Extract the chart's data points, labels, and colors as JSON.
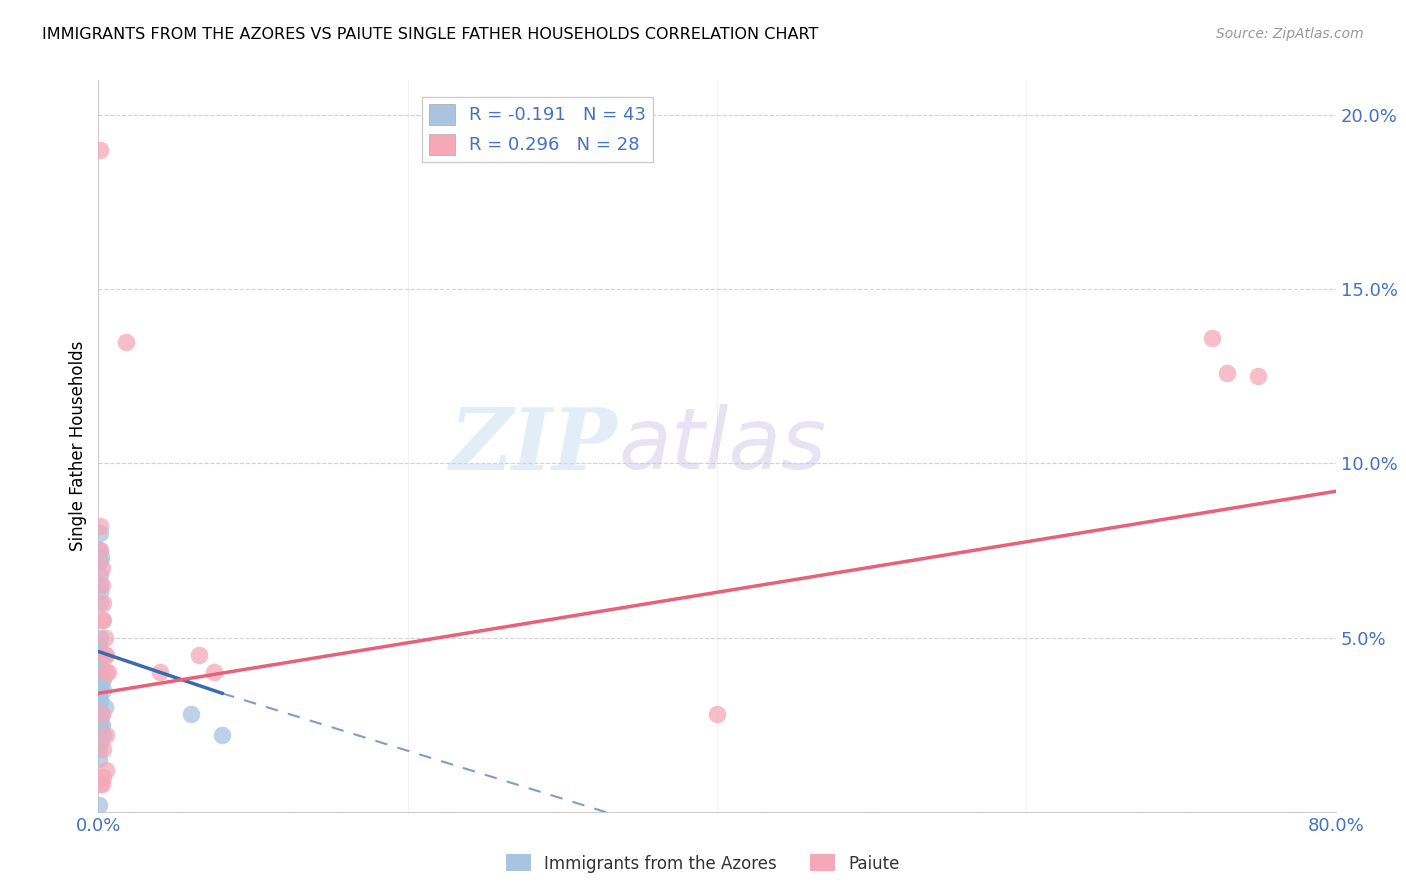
{
  "title": "IMMIGRANTS FROM THE AZORES VS PAIUTE SINGLE FATHER HOUSEHOLDS CORRELATION CHART",
  "source": "Source: ZipAtlas.com",
  "ylabel": "Single Father Households",
  "xlim": [
    0,
    0.8
  ],
  "ylim": [
    0,
    0.21
  ],
  "xticks": [
    0.0,
    0.2,
    0.4,
    0.6,
    0.8
  ],
  "yticks": [
    0.0,
    0.05,
    0.1,
    0.15,
    0.2
  ],
  "ytick_labels": [
    "",
    "5.0%",
    "10.0%",
    "15.0%",
    "20.0%"
  ],
  "xtick_labels": [
    "0.0%",
    "",
    "",
    "",
    "80.0%"
  ],
  "blue_R": -0.191,
  "blue_N": 43,
  "pink_R": 0.296,
  "pink_N": 28,
  "blue_color": "#A8C4E0",
  "pink_color": "#F4A8B8",
  "blue_line_color": "#3B6AAF",
  "pink_line_color": "#E8607A",
  "legend_label_blue": "Immigrants from the Azores",
  "legend_label_pink": "Paiute",
  "watermark_zip": "ZIP",
  "watermark_atlas": "atlas",
  "blue_line_x0": 0.0,
  "blue_line_y0": 0.046,
  "blue_line_x1": 0.08,
  "blue_line_y1": 0.034,
  "blue_line_xend": 0.8,
  "blue_line_yend": -0.065,
  "pink_line_x0": 0.0,
  "pink_line_y0": 0.034,
  "pink_line_x1": 0.8,
  "pink_line_y1": 0.092,
  "blue_scatter_x": [
    0.0005,
    0.001,
    0.001,
    0.001,
    0.0015,
    0.001,
    0.0008,
    0.001,
    0.001,
    0.0005,
    0.0005,
    0.001,
    0.0005,
    0.001,
    0.0008,
    0.001,
    0.0005,
    0.0008,
    0.001,
    0.001,
    0.0005,
    0.001,
    0.0005,
    0.001,
    0.0005,
    0.001,
    0.0005,
    0.001,
    0.0005,
    0.0005,
    0.002,
    0.002,
    0.001,
    0.002,
    0.001,
    0.003,
    0.003,
    0.004,
    0.002,
    0.003,
    0.06,
    0.08,
    0.0003
  ],
  "blue_scatter_y": [
    0.075,
    0.08,
    0.072,
    0.068,
    0.073,
    0.065,
    0.063,
    0.06,
    0.05,
    0.048,
    0.045,
    0.045,
    0.042,
    0.042,
    0.04,
    0.038,
    0.038,
    0.036,
    0.036,
    0.035,
    0.033,
    0.032,
    0.03,
    0.028,
    0.026,
    0.025,
    0.022,
    0.02,
    0.018,
    0.015,
    0.04,
    0.038,
    0.032,
    0.028,
    0.025,
    0.038,
    0.035,
    0.03,
    0.025,
    0.022,
    0.028,
    0.022,
    0.002
  ],
  "pink_scatter_x": [
    0.001,
    0.001,
    0.001,
    0.002,
    0.002,
    0.002,
    0.003,
    0.003,
    0.004,
    0.004,
    0.005,
    0.005,
    0.006,
    0.018,
    0.04,
    0.065,
    0.075,
    0.4,
    0.72,
    0.73,
    0.75,
    0.001,
    0.002,
    0.003,
    0.005,
    0.005,
    0.003,
    0.002
  ],
  "pink_scatter_y": [
    0.19,
    0.082,
    0.075,
    0.07,
    0.065,
    0.055,
    0.06,
    0.055,
    0.05,
    0.045,
    0.045,
    0.04,
    0.04,
    0.135,
    0.04,
    0.045,
    0.04,
    0.028,
    0.136,
    0.126,
    0.125,
    0.008,
    0.008,
    0.01,
    0.012,
    0.022,
    0.018,
    0.028
  ]
}
